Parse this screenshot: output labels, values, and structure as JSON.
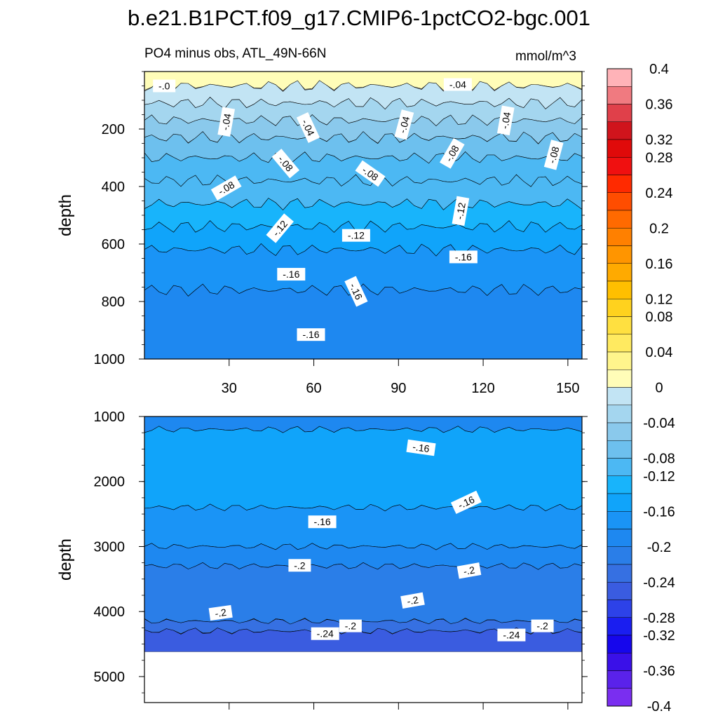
{
  "chart_data": {
    "type": "heatmap",
    "title": "b.e21.B1PCT.f09_g17.CMIP6-1pctCO2-bgc.001",
    "variable_label": "PO4 minus obs, ATL_49N-66N",
    "units": "mmol/m^3",
    "xlim": [
      0,
      155
    ],
    "x_ticks": [
      30,
      60,
      90,
      120,
      150
    ],
    "colorbar": {
      "levels": [
        0.4,
        0.36,
        0.32,
        0.28,
        0.24,
        0.2,
        0.16,
        0.12,
        0.08,
        0.04,
        0,
        -0.04,
        -0.08,
        -0.12,
        -0.16,
        -0.2,
        -0.24,
        -0.28,
        -0.32,
        -0.36,
        -0.4
      ],
      "labels": [
        "0.4",
        "0.36",
        "0.32",
        "0.28",
        "0.24",
        "0.2",
        "0.16",
        "0.12",
        "0.08",
        "0.04",
        "0",
        "-0.04",
        "-0.08",
        "-0.12",
        "-0.16",
        "-0.2",
        "-0.24",
        "-0.28",
        "-0.32",
        "-0.36",
        "-0.4"
      ],
      "colors": [
        "#ffb3b8",
        "#f07a80",
        "#e0404a",
        "#d0141c",
        "#e00a0a",
        "#f01010",
        "#ff2a00",
        "#ff4d00",
        "#ff6a00",
        "#ff8000",
        "#ff9500",
        "#ffaa00",
        "#ffbf00",
        "#ffd21e",
        "#ffe040",
        "#ffea60",
        "#fff58c",
        "#fffdb8",
        "#c2e4f4",
        "#a4d6ef",
        "#8ac9ec",
        "#6dc0ee",
        "#4cb8f3",
        "#18b4fb",
        "#10a4fa",
        "#1a94f6",
        "#1e88f0",
        "#2a7ee8",
        "#3670e2",
        "#3a5ce0",
        "#2d42e8",
        "#1a1ef0",
        "#1606ec",
        "#3a10e8",
        "#5a22ea",
        "#7a2ef0"
      ]
    },
    "panels": [
      {
        "name": "upper",
        "ylabel": "depth",
        "ylim": [
          0,
          1000
        ],
        "y_ticks": [
          200,
          400,
          600,
          800,
          1000
        ],
        "bands": [
          {
            "top": 0,
            "bottom": 50,
            "value": 0.02
          },
          {
            "top": 50,
            "bottom": 110,
            "value": -0.01
          },
          {
            "top": 110,
            "bottom": 170,
            "value": -0.03
          },
          {
            "top": 170,
            "bottom": 230,
            "value": -0.05
          },
          {
            "top": 230,
            "bottom": 300,
            "value": -0.07
          },
          {
            "top": 300,
            "bottom": 380,
            "value": -0.09
          },
          {
            "top": 380,
            "bottom": 460,
            "value": -0.11
          },
          {
            "top": 460,
            "bottom": 540,
            "value": -0.13
          },
          {
            "top": 540,
            "bottom": 620,
            "value": -0.15
          },
          {
            "top": 620,
            "bottom": 760,
            "value": -0.17
          },
          {
            "top": 760,
            "bottom": 1000,
            "value": -0.19
          }
        ],
        "contour_labels": [
          {
            "text": "-.0",
            "x": 7,
            "depth": 50,
            "angle": 0
          },
          {
            "text": "-.04",
            "x": 111,
            "depth": 45,
            "angle": 0
          },
          {
            "text": "-.04",
            "x": 29,
            "depth": 175,
            "angle": -80
          },
          {
            "text": "-.04",
            "x": 58,
            "depth": 195,
            "angle": 65
          },
          {
            "text": "-.04",
            "x": 92,
            "depth": 185,
            "angle": -75
          },
          {
            "text": "-.04",
            "x": 128,
            "depth": 170,
            "angle": -80
          },
          {
            "text": "-.08",
            "x": 50,
            "depth": 320,
            "angle": 50
          },
          {
            "text": "-.08",
            "x": 80,
            "depth": 355,
            "angle": 35
          },
          {
            "text": "-.08",
            "x": 109,
            "depth": 285,
            "angle": -60
          },
          {
            "text": "-.08",
            "x": 145,
            "depth": 290,
            "angle": -75
          },
          {
            "text": "-.08",
            "x": 29,
            "depth": 405,
            "angle": -30
          },
          {
            "text": "-.12",
            "x": 48,
            "depth": 545,
            "angle": -50
          },
          {
            "text": "-.12",
            "x": 75,
            "depth": 570,
            "angle": 0
          },
          {
            "text": "-.12",
            "x": 112,
            "depth": 485,
            "angle": -80
          },
          {
            "text": "-.16",
            "x": 52,
            "depth": 705,
            "angle": 0
          },
          {
            "text": "-.16",
            "x": 75,
            "depth": 765,
            "angle": 65
          },
          {
            "text": "-.16",
            "x": 113,
            "depth": 645,
            "angle": 0
          },
          {
            "text": "-.16",
            "x": 59,
            "depth": 915,
            "angle": 0
          }
        ]
      },
      {
        "name": "lower",
        "ylabel": "depth",
        "ylim": [
          1000,
          5400
        ],
        "y_ticks": [
          1000,
          2000,
          3000,
          4000,
          5000
        ],
        "data_bottom": 4620,
        "bands": [
          {
            "top": 1000,
            "bottom": 1200,
            "value": -0.18
          },
          {
            "top": 1200,
            "bottom": 2400,
            "value": -0.15
          },
          {
            "top": 2400,
            "bottom": 3000,
            "value": -0.17
          },
          {
            "top": 3000,
            "bottom": 3300,
            "value": -0.19
          },
          {
            "top": 3300,
            "bottom": 4150,
            "value": -0.21
          },
          {
            "top": 4150,
            "bottom": 4300,
            "value": -0.23
          },
          {
            "top": 4300,
            "bottom": 4620,
            "value": -0.25
          }
        ],
        "contour_labels": [
          {
            "text": "-.16",
            "x": 98,
            "depth": 1480,
            "angle": 8
          },
          {
            "text": "-.16",
            "x": 114,
            "depth": 2320,
            "angle": -25
          },
          {
            "text": "-.16",
            "x": 63,
            "depth": 2620,
            "angle": 0
          },
          {
            "text": "-.2",
            "x": 55,
            "depth": 3290,
            "angle": 0
          },
          {
            "text": "-.2",
            "x": 115,
            "depth": 3370,
            "angle": -10
          },
          {
            "text": "-.2",
            "x": 95,
            "depth": 3830,
            "angle": -10
          },
          {
            "text": "-.2",
            "x": 27,
            "depth": 4020,
            "angle": -8
          },
          {
            "text": "-.2",
            "x": 73,
            "depth": 4220,
            "angle": 0
          },
          {
            "text": "-.2",
            "x": 141,
            "depth": 4220,
            "angle": 0
          },
          {
            "text": "-.24",
            "x": 64,
            "depth": 4340,
            "angle": 0
          },
          {
            "text": "-.24",
            "x": 130,
            "depth": 4360,
            "angle": 0
          }
        ]
      }
    ]
  }
}
